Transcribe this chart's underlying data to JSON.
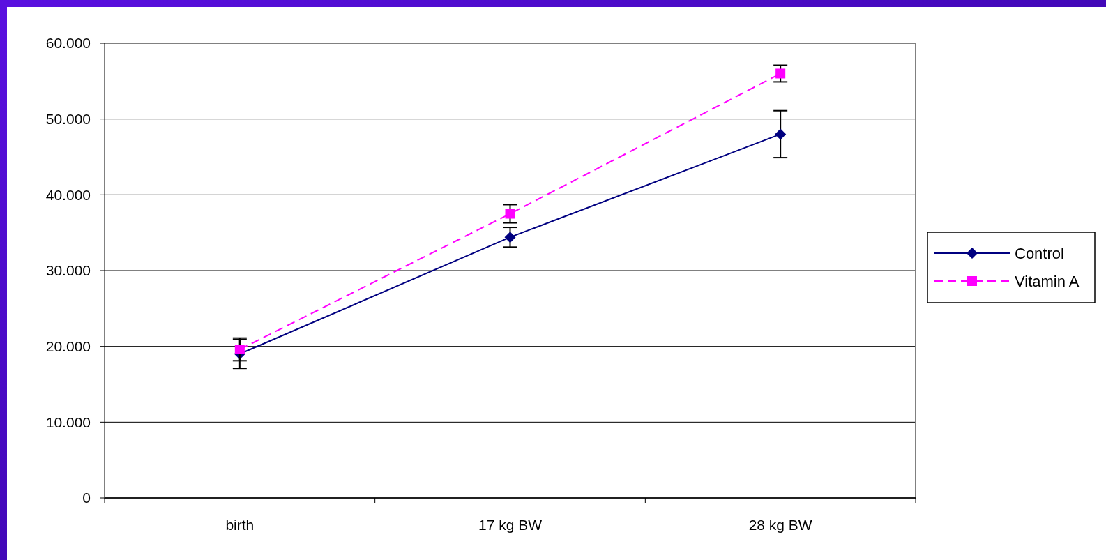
{
  "chart_data": {
    "type": "line",
    "categories": [
      "birth",
      "17 kg BW",
      "28 kg BW"
    ],
    "series": [
      {
        "name": "Control",
        "color": "#000080",
        "values": [
          19000,
          34400,
          48000
        ],
        "errors": [
          1900,
          1300,
          3100
        ],
        "marker": "diamond",
        "line_style": "solid"
      },
      {
        "name": "Vitamin A",
        "color": "#ff00ff",
        "values": [
          19600,
          37500,
          56000
        ],
        "errors": [
          1500,
          1200,
          1100
        ],
        "marker": "square",
        "line_style": "dashed"
      }
    ],
    "ylim": [
      0,
      60000
    ],
    "yticks": [
      0,
      {
        "value": 10000,
        "label": "10.000"
      },
      {
        "value": 20000,
        "label": "20.000"
      },
      {
        "value": 30000,
        "label": "30.000"
      },
      {
        "value": 40000,
        "label": "40.000"
      },
      {
        "value": 50000,
        "label": "50.000"
      },
      {
        "value": 60000,
        "label": "60.000"
      }
    ],
    "grid": "y",
    "legend": "right"
  }
}
